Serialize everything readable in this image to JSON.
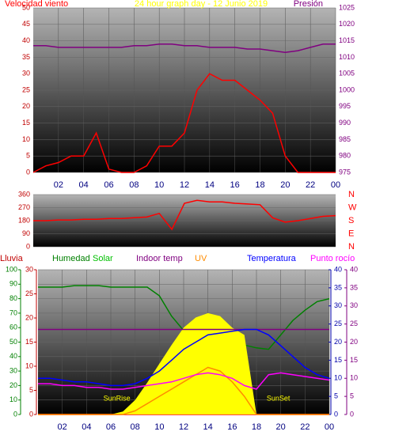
{
  "chart_data": [
    {
      "type": "line",
      "title": "24 hour graph day - 12 Junio 2019",
      "ylabel": "Velocidad viento",
      "y2label": "Presión",
      "x": [
        0,
        1,
        2,
        3,
        4,
        5,
        6,
        7,
        8,
        9,
        10,
        11,
        12,
        13,
        14,
        15,
        16,
        17,
        18,
        19,
        20,
        21,
        22,
        23,
        24
      ],
      "xlim": [
        0,
        24
      ],
      "xticks": [
        {
          "value": 2,
          "label": "02"
        },
        {
          "value": 4,
          "label": "04"
        },
        {
          "value": 6,
          "label": "06"
        },
        {
          "value": 8,
          "label": "08"
        },
        10,
        12,
        14,
        16,
        18,
        20,
        22,
        {
          "value": 24,
          "label": "00"
        }
      ],
      "ylim": [
        0,
        50
      ],
      "yticks": [
        0,
        5,
        10,
        15,
        20,
        25,
        30,
        35,
        40,
        45,
        50
      ],
      "y2lim": [
        975,
        1025
      ],
      "y2ticks": [
        975,
        980,
        985,
        990,
        995,
        1000,
        1005,
        1010,
        1015,
        1020,
        1025
      ],
      "series": [
        {
          "name": "Velocidad viento",
          "color": "#ff0000",
          "values": [
            0,
            2,
            3,
            5,
            5,
            12,
            1,
            0,
            0,
            2,
            8,
            8,
            12,
            25,
            30,
            28,
            28,
            25,
            22,
            18,
            5,
            0,
            0,
            0,
            0
          ]
        },
        {
          "name": "Presión",
          "color": "#800080",
          "axis": "y2",
          "values": [
            1013.5,
            1013.5,
            1013,
            1013,
            1013,
            1013,
            1013,
            1013,
            1013.5,
            1013.5,
            1014,
            1014,
            1013.5,
            1013.5,
            1013,
            1013,
            1013,
            1012.5,
            1012.5,
            1012,
            1011.5,
            1012,
            1013,
            1014,
            1014
          ]
        }
      ]
    },
    {
      "type": "line",
      "x": [
        0,
        1,
        2,
        3,
        4,
        5,
        6,
        7,
        8,
        9,
        10,
        11,
        12,
        13,
        14,
        15,
        16,
        17,
        18,
        19,
        20,
        21,
        22,
        23,
        24
      ],
      "xlim": [
        0,
        24
      ],
      "ylim": [
        0,
        360
      ],
      "yticks": [
        0,
        90,
        180,
        270,
        360
      ],
      "y2lim": [
        0,
        360
      ],
      "y2ticks": [
        {
          "value": 0,
          "label": "N"
        },
        {
          "value": 90,
          "label": "E"
        },
        {
          "value": 180,
          "label": "S"
        },
        {
          "value": 270,
          "label": "W"
        },
        {
          "value": 360,
          "label": "N"
        }
      ],
      "series": [
        {
          "color": "#ff0000",
          "values": [
            180,
            180,
            185,
            185,
            190,
            190,
            195,
            195,
            200,
            205,
            230,
            120,
            300,
            320,
            310,
            310,
            300,
            295,
            290,
            200,
            170,
            180,
            195,
            210,
            215
          ]
        }
      ]
    },
    {
      "type": "line",
      "x": [
        0,
        1,
        2,
        3,
        4,
        5,
        6,
        7,
        8,
        9,
        10,
        11,
        12,
        13,
        14,
        15,
        16,
        17,
        18,
        19,
        20,
        21,
        22,
        23,
        24
      ],
      "xlim": [
        0,
        24
      ],
      "xticks": [
        {
          "value": 2,
          "label": "02"
        },
        {
          "value": 4,
          "label": "04"
        },
        {
          "value": 6,
          "label": "06"
        },
        {
          "value": 8,
          "label": "08"
        },
        10,
        12,
        14,
        16,
        18,
        20,
        22,
        {
          "value": 24,
          "label": "00"
        }
      ],
      "ylim": [
        0,
        100
      ],
      "yticks": [
        0,
        10,
        20,
        30,
        40,
        50,
        60,
        70,
        80,
        90,
        100
      ],
      "y3lim": [
        0,
        30
      ],
      "y3ticks": [
        0,
        5,
        10,
        15,
        20,
        25,
        30
      ],
      "y2lim": [
        0,
        40
      ],
      "y2ticks": [
        0,
        5,
        10,
        15,
        20,
        25,
        30,
        35,
        40
      ],
      "annotations": [
        {
          "text": "SunRise",
          "x": 6.5
        },
        {
          "text": "SunSet",
          "x": 19.8
        }
      ],
      "series": [
        {
          "name": "Lluvia",
          "color": "#ff0000",
          "label_color": "#c00000",
          "axis": "y3",
          "values": [
            0,
            0,
            0,
            0,
            0,
            0,
            0,
            0,
            0,
            0,
            0,
            0,
            0,
            0,
            0,
            0,
            0,
            0,
            0,
            0,
            0,
            0,
            0,
            0,
            0
          ]
        },
        {
          "name": "Humedad",
          "color": "#008000",
          "axis": "y",
          "values": [
            88,
            88,
            88,
            89,
            89,
            89,
            88,
            88,
            88,
            88,
            82,
            68,
            58,
            55,
            52,
            50,
            49,
            48,
            46,
            45,
            55,
            65,
            72,
            78,
            80
          ]
        },
        {
          "name": "Solar",
          "color": "#ffff00",
          "label_color": "#00c000",
          "axis": "y",
          "area": true,
          "values": [
            0,
            0,
            0,
            0,
            0,
            0,
            0,
            2,
            10,
            22,
            35,
            48,
            60,
            67,
            70,
            68,
            60,
            55,
            0,
            0,
            0,
            0,
            0,
            0,
            0
          ]
        },
        {
          "name": "Indoor temp",
          "color": "#800080",
          "axis": "y2",
          "values": [
            23.5,
            23.5,
            23.5,
            23.5,
            23.5,
            23.5,
            23.5,
            23.5,
            23.5,
            23.5,
            23.5,
            23.5,
            23.5,
            23.5,
            23.5,
            23.5,
            23.5,
            23.5,
            23.5,
            23.5,
            23.5,
            23.5,
            23.5,
            23.5,
            23.5
          ]
        },
        {
          "name": "UV",
          "color": "#ff8c00",
          "axis": "y2",
          "values": [
            0,
            0,
            0,
            0,
            0,
            0,
            0,
            0,
            1,
            3,
            5,
            7,
            9,
            11,
            13,
            12,
            9,
            5,
            0,
            0,
            0,
            0,
            0,
            0,
            0
          ]
        },
        {
          "name": "Temperatura",
          "color": "#0000ff",
          "axis": "y2",
          "values": [
            10,
            10,
            9.5,
            9,
            9,
            8.5,
            8,
            8,
            8.5,
            10,
            12,
            15,
            18,
            20,
            22,
            22.5,
            23,
            23.5,
            23.5,
            22,
            19,
            16,
            13,
            11,
            10
          ]
        },
        {
          "name": "Punto rocío",
          "color": "#ff00ff",
          "axis": "y2",
          "values": [
            8.5,
            8.5,
            8,
            8,
            7.5,
            7.5,
            7,
            7,
            7.5,
            8,
            8.5,
            9,
            10,
            11,
            11.5,
            11,
            10,
            8,
            7,
            11,
            11.5,
            11,
            10.5,
            10,
            9.5
          ]
        }
      ]
    }
  ]
}
